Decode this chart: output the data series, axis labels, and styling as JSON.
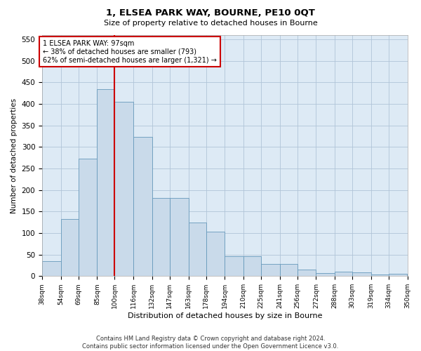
{
  "title": "1, ELSEA PARK WAY, BOURNE, PE10 0QT",
  "subtitle": "Size of property relative to detached houses in Bourne",
  "xlabel": "Distribution of detached houses by size in Bourne",
  "ylabel": "Number of detached properties",
  "bar_color": "#c9daea",
  "bar_edge_color": "#6699bb",
  "grid_color": "#b0c4d8",
  "background_color": "#ddeaf5",
  "property_line_color": "#cc0000",
  "annotation_text": "1 ELSEA PARK WAY: 97sqm\n← 38% of detached houses are smaller (793)\n62% of semi-detached houses are larger (1,321) →",
  "annotation_box_color": "#ffffff",
  "annotation_box_edge_color": "#cc0000",
  "footer_line1": "Contains HM Land Registry data © Crown copyright and database right 2024.",
  "footer_line2": "Contains public sector information licensed under the Open Government Licence v3.0.",
  "bin_edges": [
    38,
    54,
    69,
    85,
    100,
    116,
    132,
    147,
    163,
    178,
    194,
    210,
    225,
    241,
    256,
    272,
    288,
    303,
    319,
    334,
    350
  ],
  "bin_labels": [
    "38sqm",
    "54sqm",
    "69sqm",
    "85sqm",
    "100sqm",
    "116sqm",
    "132sqm",
    "147sqm",
    "163sqm",
    "178sqm",
    "194sqm",
    "210sqm",
    "225sqm",
    "241sqm",
    "256sqm",
    "272sqm",
    "288sqm",
    "303sqm",
    "319sqm",
    "334sqm",
    "350sqm"
  ],
  "counts": [
    35,
    133,
    273,
    435,
    405,
    323,
    181,
    181,
    124,
    103,
    46,
    46,
    29,
    29,
    15,
    7,
    10,
    9,
    4,
    5
  ],
  "property_line_x": 100,
  "ylim": [
    0,
    560
  ],
  "yticks": [
    0,
    50,
    100,
    150,
    200,
    250,
    300,
    350,
    400,
    450,
    500,
    550
  ]
}
